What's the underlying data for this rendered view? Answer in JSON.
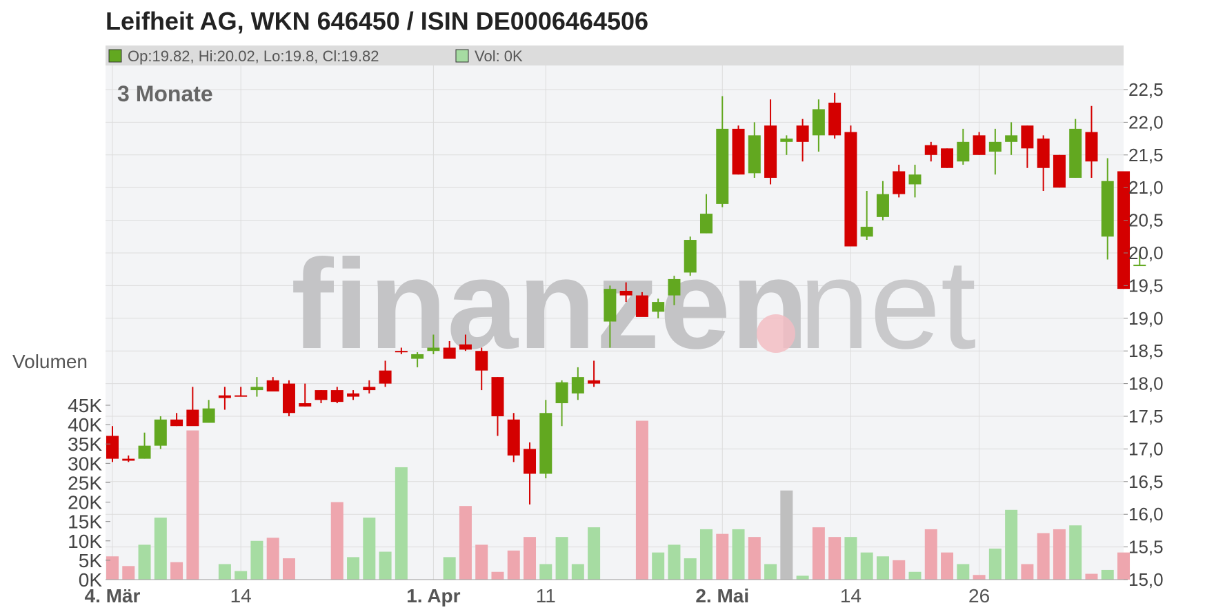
{
  "title": "Leifheit AG, WKN 646450 / ISIN DE0006464506",
  "info_bar": {
    "ohlc_text": "Op:19.82, Hi:20.02, Lo:19.8, Cl:19.82",
    "vol_text": "Vol: 0K",
    "ohlc_color": "#62a820",
    "vol_color": "#a6dca2"
  },
  "period_label": "3 Monate",
  "watermark": {
    "left": "finanzen",
    "right": "net"
  },
  "colors": {
    "up": "#62a820",
    "down": "#d40000",
    "vol_up": "#a6dca2",
    "vol_down": "#eea6ae",
    "vol_neutral": "#bfbfbf",
    "plot_bg": "#f3f4f6",
    "grid": "#dcdcdc"
  },
  "chart_data": {
    "type": "candlestick",
    "price_axis": {
      "min": 15.0,
      "max": 22.5,
      "ticks": [
        "15,0",
        "15,5",
        "16,0",
        "16,5",
        "17,0",
        "17,5",
        "18,0",
        "18,5",
        "19,0",
        "19,5",
        "20,0",
        "20,5",
        "21,0",
        "21,5",
        "22,0",
        "22,5"
      ]
    },
    "volume_axis": {
      "title": "Volumen",
      "min": 0,
      "max": 45000,
      "ticks": [
        "0K",
        "5K",
        "10K",
        "15K",
        "20K",
        "25K",
        "30K",
        "35K",
        "40K",
        "45K"
      ]
    },
    "x_axis": {
      "labels": [
        {
          "label": "4. Mär",
          "index": 0,
          "bold": true
        },
        {
          "label": "14",
          "index": 8,
          "bold": false
        },
        {
          "label": "1. Apr",
          "index": 20,
          "bold": true
        },
        {
          "label": "11",
          "index": 27,
          "bold": false
        },
        {
          "label": "2. Mai",
          "index": 38,
          "bold": true
        },
        {
          "label": "14",
          "index": 46,
          "bold": false
        },
        {
          "label": "26",
          "index": 54,
          "bold": false
        }
      ]
    },
    "candles": [
      {
        "o": 17.2,
        "h": 17.35,
        "l": 16.8,
        "c": 16.85,
        "v": 6000,
        "vt": "down"
      },
      {
        "o": 16.85,
        "h": 16.9,
        "l": 16.8,
        "c": 16.82,
        "v": 3500,
        "vt": "down"
      },
      {
        "o": 16.85,
        "h": 17.25,
        "l": 16.85,
        "c": 17.05,
        "v": 9000,
        "vt": "up"
      },
      {
        "o": 17.05,
        "h": 17.5,
        "l": 17.0,
        "c": 17.45,
        "v": 16000,
        "vt": "up"
      },
      {
        "o": 17.45,
        "h": 17.55,
        "l": 17.35,
        "c": 17.35,
        "v": 4500,
        "vt": "down"
      },
      {
        "o": 17.6,
        "h": 17.95,
        "l": 17.4,
        "c": 17.35,
        "v": 38500,
        "vt": "down"
      },
      {
        "o": 17.4,
        "h": 17.75,
        "l": 17.4,
        "c": 17.62,
        "v": 0,
        "vt": "none"
      },
      {
        "o": 17.82,
        "h": 17.95,
        "l": 17.6,
        "c": 17.78,
        "v": 4000,
        "vt": "up"
      },
      {
        "o": 17.82,
        "h": 17.95,
        "l": 17.8,
        "c": 17.8,
        "v": 2200,
        "vt": "up"
      },
      {
        "o": 17.9,
        "h": 18.1,
        "l": 17.8,
        "c": 17.95,
        "v": 10000,
        "vt": "up"
      },
      {
        "o": 18.05,
        "h": 18.1,
        "l": 17.9,
        "c": 17.88,
        "v": 10800,
        "vt": "down"
      },
      {
        "o": 18.0,
        "h": 18.05,
        "l": 17.5,
        "c": 17.55,
        "v": 5500,
        "vt": "down"
      },
      {
        "o": 17.7,
        "h": 18.0,
        "l": 17.65,
        "c": 17.65,
        "v": 0,
        "vt": "none"
      },
      {
        "o": 17.9,
        "h": 17.9,
        "l": 17.7,
        "c": 17.75,
        "v": 0,
        "vt": "none"
      },
      {
        "o": 17.9,
        "h": 17.95,
        "l": 17.7,
        "c": 17.72,
        "v": 20000,
        "vt": "down"
      },
      {
        "o": 17.85,
        "h": 17.9,
        "l": 17.75,
        "c": 17.8,
        "v": 5800,
        "vt": "up"
      },
      {
        "o": 17.95,
        "h": 18.05,
        "l": 17.85,
        "c": 17.9,
        "v": 16000,
        "vt": "up"
      },
      {
        "o": 18.2,
        "h": 18.35,
        "l": 17.95,
        "c": 18.0,
        "v": 7200,
        "vt": "up"
      },
      {
        "o": 18.5,
        "h": 18.55,
        "l": 18.45,
        "c": 18.48,
        "v": 29000,
        "vt": "up"
      },
      {
        "o": 18.38,
        "h": 18.48,
        "l": 18.25,
        "c": 18.45,
        "v": 0,
        "vt": "none"
      },
      {
        "o": 18.5,
        "h": 18.75,
        "l": 18.45,
        "c": 18.55,
        "v": 0,
        "vt": "none"
      },
      {
        "o": 18.55,
        "h": 18.65,
        "l": 18.4,
        "c": 18.38,
        "v": 5800,
        "vt": "up"
      },
      {
        "o": 18.6,
        "h": 18.75,
        "l": 18.5,
        "c": 18.52,
        "v": 19000,
        "vt": "down"
      },
      {
        "o": 18.5,
        "h": 18.55,
        "l": 17.9,
        "c": 18.2,
        "v": 9000,
        "vt": "down"
      },
      {
        "o": 18.1,
        "h": 18.1,
        "l": 17.2,
        "c": 17.5,
        "v": 2000,
        "vt": "down"
      },
      {
        "o": 17.45,
        "h": 17.55,
        "l": 16.8,
        "c": 16.9,
        "v": 7500,
        "vt": "down"
      },
      {
        "o": 17.0,
        "h": 17.1,
        "l": 16.15,
        "c": 16.62,
        "v": 11000,
        "vt": "down"
      },
      {
        "o": 16.62,
        "h": 17.75,
        "l": 16.55,
        "c": 17.55,
        "v": 4000,
        "vt": "up"
      },
      {
        "o": 17.7,
        "h": 18.05,
        "l": 17.35,
        "c": 18.02,
        "v": 11000,
        "vt": "up"
      },
      {
        "o": 17.85,
        "h": 18.25,
        "l": 17.75,
        "c": 18.1,
        "v": 4000,
        "vt": "up"
      },
      {
        "o": 18.05,
        "h": 18.35,
        "l": 17.95,
        "c": 18.0,
        "v": 13500,
        "vt": "up"
      },
      {
        "o": 18.95,
        "h": 19.5,
        "l": 18.55,
        "c": 19.45,
        "v": 0,
        "vt": "none"
      },
      {
        "o": 19.42,
        "h": 19.55,
        "l": 19.25,
        "c": 19.35,
        "v": 0,
        "vt": "none"
      },
      {
        "o": 19.35,
        "h": 19.4,
        "l": 19.05,
        "c": 19.02,
        "v": 41000,
        "vt": "down"
      },
      {
        "o": 19.1,
        "h": 19.3,
        "l": 19.0,
        "c": 19.25,
        "v": 7000,
        "vt": "up"
      },
      {
        "o": 19.35,
        "h": 19.65,
        "l": 19.2,
        "c": 19.6,
        "v": 9000,
        "vt": "up"
      },
      {
        "o": 19.7,
        "h": 20.25,
        "l": 19.65,
        "c": 20.2,
        "v": 5500,
        "vt": "up"
      },
      {
        "o": 20.3,
        "h": 20.9,
        "l": 20.3,
        "c": 20.6,
        "v": 13000,
        "vt": "up"
      },
      {
        "o": 20.75,
        "h": 22.4,
        "l": 20.7,
        "c": 21.9,
        "v": 11800,
        "vt": "down"
      },
      {
        "o": 21.9,
        "h": 21.95,
        "l": 21.2,
        "c": 21.2,
        "v": 13000,
        "vt": "up"
      },
      {
        "o": 21.22,
        "h": 22.0,
        "l": 21.15,
        "c": 21.8,
        "v": 11000,
        "vt": "down"
      },
      {
        "o": 21.95,
        "h": 22.35,
        "l": 21.05,
        "c": 21.15,
        "v": 4000,
        "vt": "up"
      },
      {
        "o": 21.7,
        "h": 21.8,
        "l": 21.5,
        "c": 21.75,
        "v": 23000,
        "vt": "neutral"
      },
      {
        "o": 21.95,
        "h": 22.05,
        "l": 21.4,
        "c": 21.7,
        "v": 1000,
        "vt": "up"
      },
      {
        "o": 21.8,
        "h": 22.35,
        "l": 21.55,
        "c": 22.2,
        "v": 13500,
        "vt": "down"
      },
      {
        "o": 22.3,
        "h": 22.45,
        "l": 21.75,
        "c": 21.8,
        "v": 11000,
        "vt": "down"
      },
      {
        "o": 21.85,
        "h": 21.95,
        "l": 20.1,
        "c": 20.1,
        "v": 11000,
        "vt": "up"
      },
      {
        "o": 20.25,
        "h": 20.95,
        "l": 20.2,
        "c": 20.4,
        "v": 7000,
        "vt": "up"
      },
      {
        "o": 20.55,
        "h": 21.1,
        "l": 20.5,
        "c": 20.9,
        "v": 6000,
        "vt": "up"
      },
      {
        "o": 21.25,
        "h": 21.35,
        "l": 20.85,
        "c": 20.9,
        "v": 5000,
        "vt": "down"
      },
      {
        "o": 21.05,
        "h": 21.35,
        "l": 20.85,
        "c": 21.2,
        "v": 2000,
        "vt": "up"
      },
      {
        "o": 21.65,
        "h": 21.7,
        "l": 21.4,
        "c": 21.5,
        "v": 13000,
        "vt": "down"
      },
      {
        "o": 21.6,
        "h": 21.6,
        "l": 21.3,
        "c": 21.3,
        "v": 7000,
        "vt": "down"
      },
      {
        "o": 21.4,
        "h": 21.9,
        "l": 21.35,
        "c": 21.7,
        "v": 4000,
        "vt": "up"
      },
      {
        "o": 21.8,
        "h": 21.85,
        "l": 21.5,
        "c": 21.5,
        "v": 1200,
        "vt": "down"
      },
      {
        "o": 21.55,
        "h": 21.9,
        "l": 21.2,
        "c": 21.7,
        "v": 8000,
        "vt": "up"
      },
      {
        "o": 21.7,
        "h": 22.0,
        "l": 21.5,
        "c": 21.8,
        "v": 18000,
        "vt": "up"
      },
      {
        "o": 21.95,
        "h": 21.95,
        "l": 21.3,
        "c": 21.6,
        "v": 4000,
        "vt": "down"
      },
      {
        "o": 21.75,
        "h": 21.8,
        "l": 20.95,
        "c": 21.3,
        "v": 12000,
        "vt": "down"
      },
      {
        "o": 21.5,
        "h": 21.5,
        "l": 21.0,
        "c": 21.0,
        "v": 13000,
        "vt": "down"
      },
      {
        "o": 21.15,
        "h": 22.05,
        "l": 21.15,
        "c": 21.9,
        "v": 14000,
        "vt": "up"
      },
      {
        "o": 21.85,
        "h": 22.25,
        "l": 21.15,
        "c": 21.4,
        "v": 1500,
        "vt": "down"
      },
      {
        "o": 20.25,
        "h": 21.45,
        "l": 19.9,
        "c": 21.1,
        "v": 2500,
        "vt": "up"
      },
      {
        "o": 21.25,
        "h": 21.25,
        "l": 19.45,
        "c": 19.45,
        "v": 7000,
        "vt": "down"
      },
      {
        "o": 19.82,
        "h": 20.02,
        "l": 19.8,
        "c": 19.82,
        "v": 0,
        "vt": "none"
      }
    ]
  }
}
